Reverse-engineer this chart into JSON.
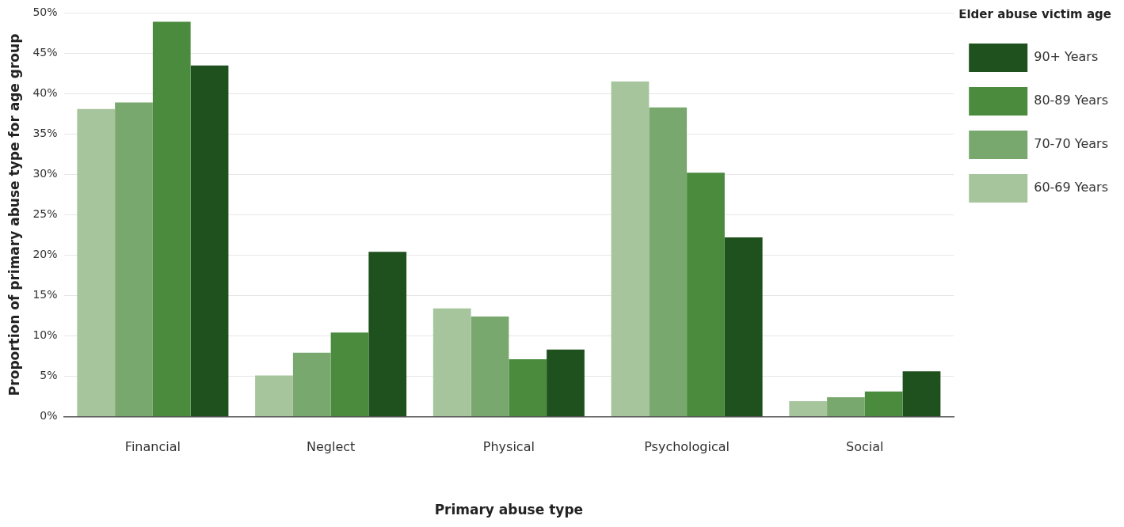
{
  "chart_data": {
    "type": "bar",
    "xlabel": "Primary abuse type",
    "ylabel": "Proportion of primary abuse type for age group",
    "legend_title": "Elder abuse victim age",
    "categories": [
      "Financial",
      "Neglect",
      "Physical",
      "Psychological",
      "Social"
    ],
    "series": [
      {
        "name": "60-69 Years",
        "color": "#a6c59c",
        "values": [
          38.1,
          5.1,
          13.4,
          41.5,
          1.9
        ]
      },
      {
        "name": "70-70 Years",
        "color": "#79a86e",
        "values": [
          38.9,
          7.9,
          12.4,
          38.3,
          2.4
        ]
      },
      {
        "name": "80-89 Years",
        "color": "#4a8b3e",
        "values": [
          48.9,
          10.4,
          7.1,
          30.2,
          3.1
        ]
      },
      {
        "name": "90+ Years",
        "color": "#1f511e",
        "values": [
          43.5,
          20.4,
          8.3,
          22.2,
          5.6
        ]
      }
    ],
    "ylim": [
      0,
      50
    ],
    "yticks": [
      {
        "value": 0,
        "label": "0%"
      },
      {
        "value": 5,
        "label": "5%"
      },
      {
        "value": 10,
        "label": "10%"
      },
      {
        "value": 15,
        "label": "15%"
      },
      {
        "value": 20,
        "label": "20%"
      },
      {
        "value": 25,
        "label": "25%"
      },
      {
        "value": 30,
        "label": "30%"
      },
      {
        "value": 35,
        "label": "35%"
      },
      {
        "value": 40,
        "label": "40%"
      },
      {
        "value": 45,
        "label": "45%"
      },
      {
        "value": 50,
        "label": "50%"
      }
    ],
    "grid": "y",
    "legend": "top right"
  }
}
